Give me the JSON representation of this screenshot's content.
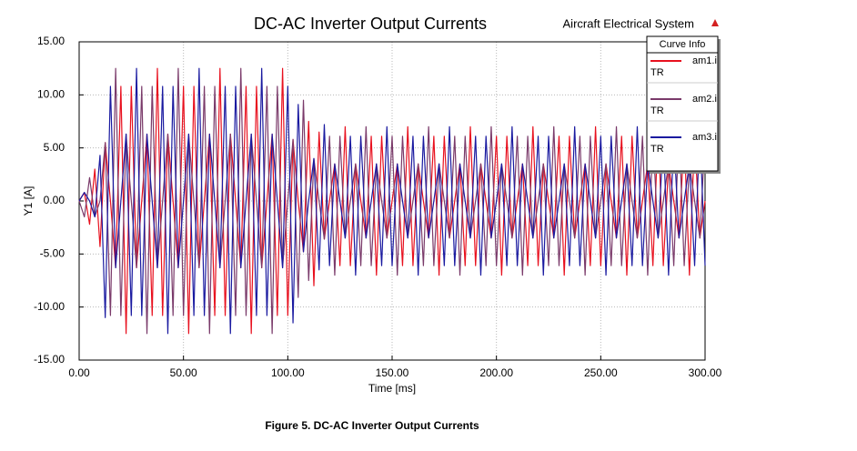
{
  "chart_data": {
    "type": "line",
    "title": "DC-AC Inverter Output Currents",
    "subtitle": "Aircraft Electrical System",
    "caption": "Figure 5. DC-AC Inverter Output Currents",
    "legend_title": "Curve Info",
    "legend": "upper right",
    "grid": true,
    "xlabel": "Time [ms]",
    "ylabel": "Y1 [A]",
    "xlim": [
      0,
      300
    ],
    "ylim": [
      -15,
      15
    ],
    "xticks": [
      {
        "value": 0,
        "label": "0.00"
      },
      {
        "value": 50,
        "label": "50.00"
      },
      {
        "value": 100,
        "label": "100.00"
      },
      {
        "value": 150,
        "label": "150.00"
      },
      {
        "value": 200,
        "label": "200.00"
      },
      {
        "value": 250,
        "label": "250.00"
      },
      {
        "value": 300,
        "label": "300.00"
      }
    ],
    "yticks": [
      {
        "value": -15,
        "label": "-15.00"
      },
      {
        "value": -10,
        "label": "-10.00"
      },
      {
        "value": -5,
        "label": "-5.00"
      },
      {
        "value": 0,
        "label": "0.00"
      },
      {
        "value": 5,
        "label": "5.00"
      },
      {
        "value": 10,
        "label": "10.00"
      },
      {
        "value": 15,
        "label": "15.00"
      }
    ],
    "x": [
      0,
      2.5,
      5,
      7.5,
      10,
      12.5,
      15,
      17.5,
      20,
      22.5,
      25,
      27.5,
      30,
      32.5,
      35,
      37.5,
      40,
      42.5,
      45,
      47.5,
      50,
      52.5,
      55,
      57.5,
      60,
      62.5,
      65,
      67.5,
      70,
      72.5,
      75,
      77.5,
      80,
      82.5,
      85,
      87.5,
      90,
      92.5,
      95,
      97.5,
      100,
      102.5,
      105,
      107.5,
      110,
      112.5,
      115,
      117.5,
      120,
      122.5,
      125,
      127.5,
      130,
      132.5,
      135,
      137.5,
      140,
      142.5,
      145,
      147.5,
      150,
      152.5,
      155,
      157.5,
      160,
      162.5,
      165,
      167.5,
      170,
      172.5,
      175,
      177.5,
      180,
      182.5,
      185,
      187.5,
      190,
      192.5,
      195,
      197.5,
      200,
      202.5,
      205,
      207.5,
      210,
      212.5,
      215,
      217.5,
      220,
      222.5,
      225,
      227.5,
      230,
      232.5,
      235,
      237.5,
      240,
      242.5,
      245,
      247.5,
      250,
      252.5,
      255,
      257.5,
      260,
      262.5,
      265,
      267.5,
      270,
      272.5,
      275,
      277.5,
      280,
      282.5,
      285,
      287.5,
      290,
      292.5,
      295,
      297.5,
      300
    ],
    "series": [
      {
        "name": "am1.i",
        "sublabel": "TR",
        "color": "#e8101e",
        "values": [
          0,
          0.8,
          -2.2,
          3,
          -4.3,
          5.5,
          0,
          -6.3,
          10.8,
          -12.5,
          10.8,
          -6.3,
          0,
          6.3,
          -10.8,
          12.5,
          -10.8,
          6.3,
          0,
          -6.3,
          10.8,
          -12.5,
          10.8,
          -6.3,
          0,
          6.3,
          -10.8,
          12.5,
          -10.8,
          6.3,
          0,
          -6.3,
          10.8,
          -12.5,
          10.8,
          -6.3,
          0,
          6.3,
          -10.8,
          12.5,
          -10.8,
          5.8,
          0,
          -4.8,
          7.5,
          -8,
          6.5,
          -3.6,
          0,
          3.5,
          -6.1,
          7,
          -6.1,
          3.5,
          0,
          -3.5,
          6.1,
          -7,
          6.1,
          -3.5,
          0,
          3.5,
          -6.1,
          7,
          -6.1,
          3.5,
          0,
          -3.5,
          6.1,
          -7,
          6.1,
          -3.5,
          0,
          3.5,
          -6.1,
          7,
          -6.1,
          3.5,
          0,
          -3.5,
          6.1,
          -7,
          6.1,
          -3.5,
          0,
          3.5,
          -6.1,
          7,
          -6.1,
          3.5,
          0,
          -3.5,
          6.1,
          -7,
          6.1,
          -3.5,
          0,
          3.5,
          -6.1,
          7,
          -6.1,
          3.5,
          0,
          -3.5,
          6.1,
          -7,
          6.1,
          -3.5,
          0,
          3.5,
          -6.1,
          7,
          -6.1,
          3.5,
          0,
          -3.5,
          6.1,
          -7,
          6.1,
          -3.5,
          0
        ]
      },
      {
        "name": "am2.i",
        "sublabel": "TR",
        "color": "#7a3a6a",
        "values": [
          0,
          -1.5,
          2.2,
          -1.5,
          0,
          5.5,
          -10.8,
          12.5,
          -10.8,
          6.3,
          0,
          -6.3,
          10.8,
          -12.5,
          10.8,
          -6.3,
          0,
          6.3,
          -10.8,
          12.5,
          -10.8,
          6.3,
          0,
          -6.3,
          10.8,
          -12.5,
          10.8,
          -6.3,
          0,
          6.3,
          -10.8,
          12.5,
          -10.8,
          6.3,
          0,
          -6.3,
          10.8,
          -12.5,
          10.8,
          -6.3,
          0,
          5.8,
          -9.1,
          9.5,
          -7.5,
          4,
          0,
          -3.6,
          6.1,
          -7,
          6.1,
          -3.5,
          0,
          3.5,
          -6.1,
          7,
          -6.1,
          3.5,
          0,
          -3.5,
          6.1,
          -7,
          6.1,
          -3.5,
          0,
          3.5,
          -6.1,
          7,
          -6.1,
          3.5,
          0,
          -3.5,
          6.1,
          -7,
          6.1,
          -3.5,
          0,
          3.5,
          -6.1,
          7,
          -6.1,
          3.5,
          0,
          -3.5,
          6.1,
          -7,
          6.1,
          -3.5,
          0,
          3.5,
          -6.1,
          7,
          -6.1,
          3.5,
          0,
          -3.5,
          6.1,
          -7,
          6.1,
          -3.5,
          0,
          3.5,
          -6.1,
          7,
          -6.1,
          3.5,
          0,
          -3.5,
          6.1,
          -7,
          6.1,
          -3.5,
          0,
          3.5,
          -6.1,
          7,
          -6.1,
          3.5,
          0,
          -3.5,
          6.1
        ]
      },
      {
        "name": "am3.i",
        "sublabel": "TR",
        "color": "#1a1aa0",
        "values": [
          0,
          0.8,
          0,
          -1.5,
          4.3,
          -11,
          10.8,
          -6.3,
          0,
          6.3,
          -10.8,
          12.5,
          -10.8,
          6.3,
          0,
          -6.3,
          10.8,
          -12.5,
          10.8,
          -6.3,
          0,
          6.3,
          -10.8,
          12.5,
          -10.8,
          6.3,
          0,
          -6.3,
          10.8,
          -12.5,
          10.8,
          -6.3,
          0,
          6.3,
          -10.8,
          12.5,
          -10.8,
          6.3,
          0,
          -6.3,
          10.8,
          -11.5,
          9.1,
          -4.8,
          0,
          4,
          -6.5,
          7.2,
          -6.1,
          3.5,
          0,
          -3.5,
          6.1,
          -7,
          6.1,
          -3.5,
          0,
          3.5,
          -6.1,
          7,
          -6.1,
          3.5,
          0,
          -3.5,
          6.1,
          -7,
          6.1,
          -3.5,
          0,
          3.5,
          -6.1,
          7,
          -6.1,
          3.5,
          0,
          -3.5,
          6.1,
          -7,
          6.1,
          -3.5,
          0,
          3.5,
          -6.1,
          7,
          -6.1,
          3.5,
          0,
          -3.5,
          6.1,
          -7,
          6.1,
          -3.5,
          0,
          3.5,
          -6.1,
          7,
          -6.1,
          3.5,
          0,
          -3.5,
          6.1,
          -7,
          6.1,
          -3.5,
          0,
          3.5,
          -6.1,
          7,
          -6.1,
          3.5,
          0,
          -3.5,
          6.1,
          -7,
          6.1,
          -3.5,
          0,
          3.5,
          -6.1,
          7,
          -6.1
        ]
      }
    ]
  }
}
